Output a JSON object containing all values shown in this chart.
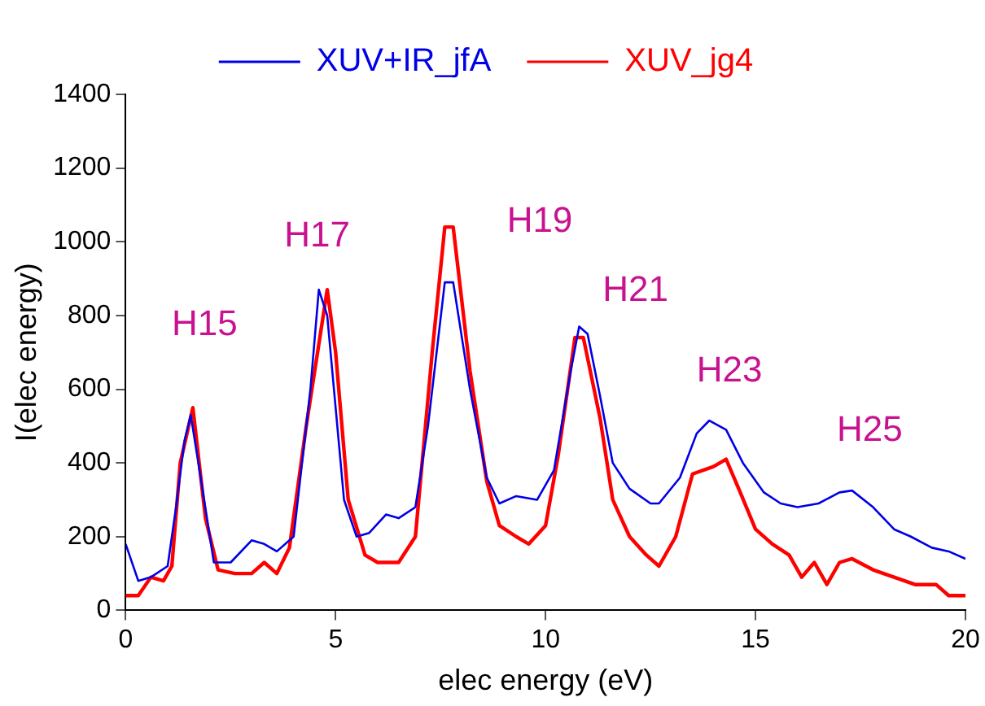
{
  "chart_data": {
    "type": "line",
    "xlabel": "elec energy (eV)",
    "ylabel": "I(elec energy)",
    "xlim": [
      0,
      20
    ],
    "xticks": [
      0,
      5,
      10,
      15,
      20
    ],
    "ylim": [
      0,
      1400
    ],
    "yticks": [
      0,
      200,
      400,
      600,
      800,
      1000,
      1200,
      1400
    ],
    "grid": false,
    "legend": "top",
    "marker": "none",
    "line_style": "solid",
    "series": [
      {
        "name": "XUV+IR_jfA",
        "color": "#0000e6",
        "x": [
          0,
          0.3,
          0.6,
          1.0,
          1.2,
          1.4,
          1.55,
          1.8,
          2.1,
          2.5,
          3.0,
          3.3,
          3.6,
          4.0,
          4.4,
          4.6,
          4.8,
          5.2,
          5.5,
          5.8,
          6.2,
          6.5,
          6.9,
          7.2,
          7.6,
          7.8,
          8.2,
          8.6,
          8.9,
          9.3,
          9.8,
          10.2,
          10.6,
          10.8,
          11.0,
          11.3,
          11.6,
          12.0,
          12.5,
          12.7,
          13.2,
          13.6,
          13.9,
          14.3,
          14.7,
          15.2,
          15.6,
          16.0,
          16.5,
          17.0,
          17.3,
          17.8,
          18.3,
          18.7,
          19.2,
          19.6,
          20
        ],
        "values": [
          180,
          80,
          90,
          120,
          280,
          460,
          530,
          350,
          130,
          130,
          190,
          180,
          160,
          200,
          600,
          870,
          800,
          300,
          200,
          210,
          260,
          250,
          280,
          500,
          890,
          890,
          600,
          360,
          290,
          310,
          300,
          380,
          650,
          770,
          750,
          580,
          400,
          330,
          290,
          290,
          360,
          480,
          515,
          490,
          400,
          320,
          290,
          280,
          290,
          320,
          325,
          280,
          220,
          200,
          170,
          160,
          140
        ]
      },
      {
        "name": "XUV_jg4",
        "color": "#ff0000",
        "x": [
          0,
          0.3,
          0.6,
          0.9,
          1.1,
          1.3,
          1.6,
          1.9,
          2.2,
          2.6,
          3.0,
          3.3,
          3.6,
          3.9,
          4.3,
          4.8,
          5.0,
          5.3,
          5.7,
          6.0,
          6.5,
          6.9,
          7.3,
          7.6,
          7.8,
          8.2,
          8.6,
          8.9,
          9.3,
          9.6,
          10.0,
          10.3,
          10.7,
          10.9,
          11.3,
          11.6,
          12.0,
          12.4,
          12.7,
          13.1,
          13.5,
          14.0,
          14.3,
          14.6,
          15.0,
          15.4,
          15.8,
          16.1,
          16.4,
          16.7,
          17.0,
          17.3,
          17.8,
          18.3,
          18.8,
          19.3,
          19.6,
          20
        ],
        "values": [
          40,
          40,
          90,
          80,
          120,
          400,
          550,
          250,
          110,
          100,
          100,
          130,
          100,
          170,
          500,
          870,
          700,
          300,
          150,
          130,
          130,
          200,
          700,
          1040,
          1040,
          650,
          350,
          230,
          200,
          180,
          230,
          420,
          740,
          740,
          520,
          300,
          200,
          150,
          120,
          200,
          370,
          390,
          410,
          330,
          220,
          180,
          150,
          90,
          130,
          70,
          130,
          140,
          110,
          90,
          70,
          70,
          40,
          40
        ]
      }
    ],
    "annotations": [
      "H15",
      "H17",
      "H19",
      "H21",
      "H23",
      "H25"
    ]
  }
}
